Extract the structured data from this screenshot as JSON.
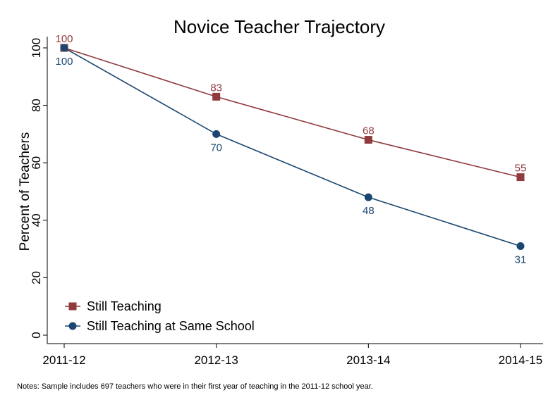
{
  "chart_data": {
    "type": "line",
    "title": "Novice Teacher Trajectory",
    "xlabel": "",
    "ylabel": "Percent of Teachers",
    "categories": [
      "2011-12",
      "2012-13",
      "2013-14",
      "2014-15"
    ],
    "ylim": [
      0,
      100
    ],
    "yticks": [
      0,
      20,
      40,
      60,
      80,
      100
    ],
    "grid": false,
    "legend_position": "bottom-left",
    "series": [
      {
        "name": "Still Teaching",
        "values": [
          100,
          83,
          68,
          55
        ],
        "labels": [
          "100",
          "83",
          "68",
          "55"
        ],
        "marker": "square",
        "color": "#903a3e"
      },
      {
        "name": "Still Teaching at Same School",
        "values": [
          100,
          70,
          48,
          31
        ],
        "labels": [
          "100",
          "70",
          "48",
          "31"
        ],
        "marker": "circle",
        "color": "#1a4670"
      }
    ],
    "note": "Notes: Sample includes 697 teachers who were in their first year of teaching in the 2011-12 school year."
  }
}
